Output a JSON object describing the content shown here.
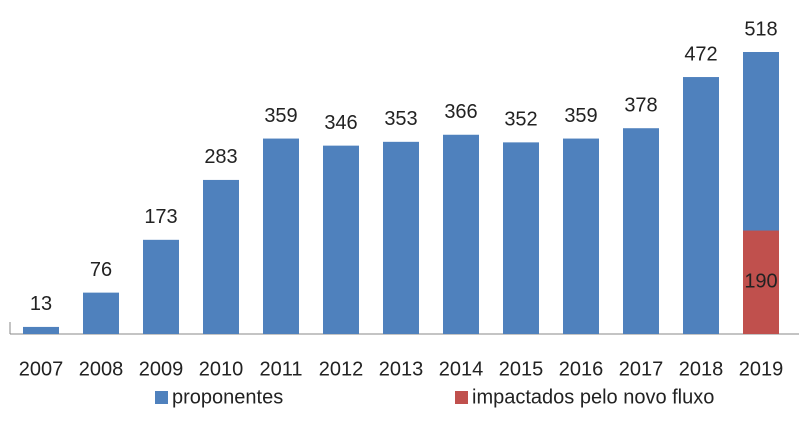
{
  "chart_data": {
    "type": "bar",
    "categories": [
      "2007",
      "2008",
      "2009",
      "2010",
      "2011",
      "2012",
      "2013",
      "2014",
      "2015",
      "2016",
      "2017",
      "2018",
      "2019"
    ],
    "series": [
      {
        "name": "proponentes",
        "color": "#4f81bd",
        "values": [
          13,
          76,
          173,
          283,
          359,
          346,
          353,
          366,
          352,
          359,
          378,
          472,
          518
        ]
      },
      {
        "name": "impactados pelo novo fluxo",
        "color": "#c0504d",
        "values": [
          null,
          null,
          null,
          null,
          null,
          null,
          null,
          null,
          null,
          null,
          null,
          null,
          190
        ]
      }
    ]
  }
}
